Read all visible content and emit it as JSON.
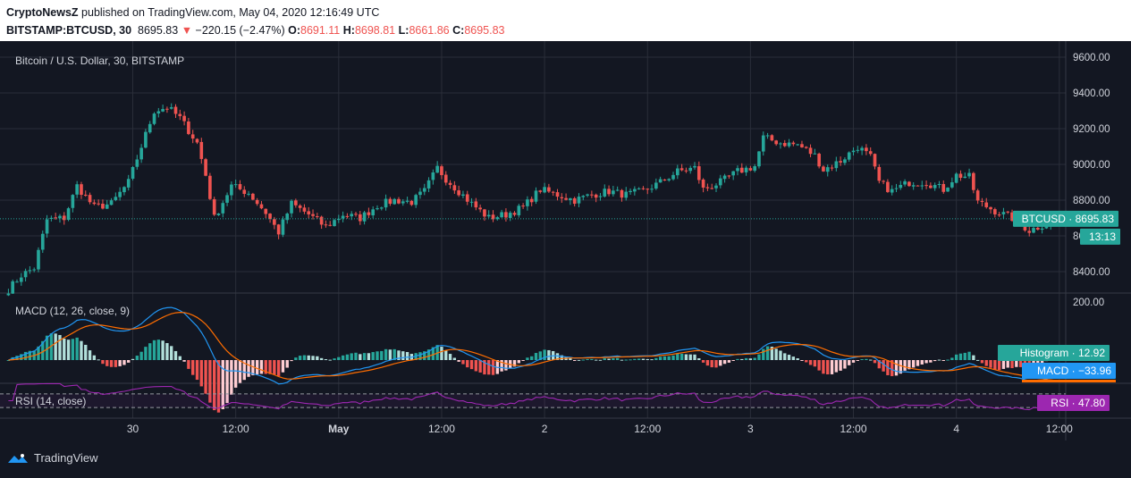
{
  "header": {
    "publisher": "CryptoNewsZ",
    "published_text": " published on TradingView.com, May 04, 2020 12:16:49 UTC",
    "symbol": "BITSTAMP:BTCUSD, 30",
    "last": "8695.83",
    "change": "−220.15 (−2.47%)",
    "o_label": "O:",
    "o_value": "8691.11",
    "h_label": "H:",
    "h_value": "8698.81",
    "l_label": "L:",
    "l_value": "8661.86",
    "c_label": "C:",
    "c_value": "8695.83"
  },
  "colors": {
    "background": "#131722",
    "grid": "#2a2e39",
    "up": "#26a69a",
    "down": "#ef5350",
    "macd_line": "#2196f3",
    "signal_line": "#ff6d00",
    "rsi_line": "#9c27b0",
    "hist_up_strong": "#26a69a",
    "hist_up_weak": "#b2dfdb",
    "hist_down_strong": "#ef5350",
    "hist_down_weak": "#ffcdd2"
  },
  "chart_data": {
    "type": "candlestick",
    "title": "Bitcoin / U.S. Dollar, 30, BITSTAMP",
    "ylim": [
      8280,
      9690
    ],
    "y_ticks": [
      "9600.00",
      "9400.00",
      "9200.00",
      "9000.00",
      "8800.00",
      "8600.00",
      "8400.00"
    ],
    "y_tick_values": [
      9600,
      9400,
      9200,
      9000,
      8800,
      8600,
      8400
    ],
    "x_ticks": [
      "30",
      "12:00",
      "May",
      "12:00",
      "2",
      "12:00",
      "3",
      "12:00",
      "4",
      "12:00"
    ],
    "x_tick_bold": [
      false,
      false,
      true,
      false,
      false,
      false,
      false,
      false,
      false,
      false
    ],
    "x_tick_bar_index": [
      29,
      53,
      77,
      101,
      125,
      149,
      173,
      197,
      221,
      245
    ],
    "bar_count": 247,
    "current_price": 8695.83,
    "price_label": "BTCUSD",
    "price_value": "8695.83",
    "countdown": "13:13",
    "anchors": [
      [
        0,
        8300
      ],
      [
        3,
        8380
      ],
      [
        6,
        8420
      ],
      [
        9,
        8690
      ],
      [
        13,
        8700
      ],
      [
        16,
        8880
      ],
      [
        20,
        8760
      ],
      [
        24,
        8780
      ],
      [
        28,
        8900
      ],
      [
        31,
        9100
      ],
      [
        34,
        9300
      ],
      [
        37,
        9320
      ],
      [
        40,
        9260
      ],
      [
        44,
        9120
      ],
      [
        46,
        8940
      ],
      [
        48,
        8700
      ],
      [
        52,
        8880
      ],
      [
        56,
        8840
      ],
      [
        60,
        8730
      ],
      [
        63,
        8620
      ],
      [
        66,
        8780
      ],
      [
        70,
        8720
      ],
      [
        74,
        8650
      ],
      [
        78,
        8720
      ],
      [
        82,
        8700
      ],
      [
        86,
        8770
      ],
      [
        90,
        8800
      ],
      [
        94,
        8790
      ],
      [
        97,
        8850
      ],
      [
        100,
        8980
      ],
      [
        102,
        8920
      ],
      [
        105,
        8850
      ],
      [
        108,
        8780
      ],
      [
        112,
        8700
      ],
      [
        116,
        8720
      ],
      [
        120,
        8760
      ],
      [
        124,
        8860
      ],
      [
        128,
        8830
      ],
      [
        132,
        8800
      ],
      [
        136,
        8830
      ],
      [
        140,
        8850
      ],
      [
        144,
        8830
      ],
      [
        148,
        8850
      ],
      [
        152,
        8900
      ],
      [
        156,
        8960
      ],
      [
        160,
        8980
      ],
      [
        162,
        8860
      ],
      [
        166,
        8900
      ],
      [
        170,
        8960
      ],
      [
        174,
        8990
      ],
      [
        176,
        9150
      ],
      [
        180,
        9120
      ],
      [
        184,
        9110
      ],
      [
        188,
        9050
      ],
      [
        190,
        8970
      ],
      [
        194,
        9020
      ],
      [
        198,
        9100
      ],
      [
        201,
        9040
      ],
      [
        203,
        8900
      ],
      [
        206,
        8850
      ],
      [
        210,
        8900
      ],
      [
        214,
        8900
      ],
      [
        218,
        8860
      ],
      [
        221,
        8940
      ],
      [
        224,
        8930
      ],
      [
        226,
        8790
      ],
      [
        230,
        8740
      ],
      [
        234,
        8700
      ],
      [
        238,
        8630
      ],
      [
        242,
        8670
      ],
      [
        246,
        8696
      ]
    ],
    "macd": {
      "label": "MACD (12, 26, close, 9)",
      "params": [
        12,
        26,
        9
      ],
      "histogram_label": "Histogram",
      "histogram_value": "12.92",
      "macd_label": "MACD",
      "macd_value": "−33.96",
      "y_ticks": [
        "200.00"
      ],
      "y_tick_values": [
        200
      ]
    },
    "rsi": {
      "label": "RSI (14, close)",
      "period": 14,
      "value_label": "RSI",
      "value": "47.80",
      "bands": [
        70,
        30
      ]
    }
  },
  "footer": {
    "brand": "TradingView"
  }
}
